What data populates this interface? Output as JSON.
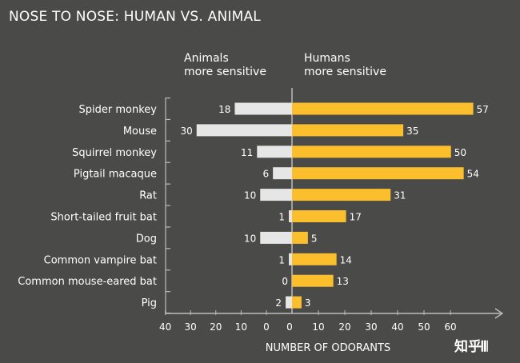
{
  "chart_data": {
    "type": "bar",
    "title": "NOSE TO NOSE: HUMAN VS. ANIMAL",
    "xlabel": "NUMBER OF ODORANTS",
    "left_header": [
      "Animals",
      "more sensitive"
    ],
    "right_header": [
      "Humans",
      "more sensitive"
    ],
    "categories": [
      "Spider monkey",
      "Mouse",
      "Squirrel monkey",
      "Pigtail macaque",
      "Rat",
      "Short-tailed fruit bat",
      "Dog",
      "Common vampire bat",
      "Common mouse-eared bat",
      "Pig"
    ],
    "series": [
      {
        "name": "Animals more sensitive",
        "values": [
          18,
          30,
          11,
          6,
          10,
          1,
          10,
          1,
          0,
          2
        ]
      },
      {
        "name": "Humans more sensitive",
        "values": [
          57,
          35,
          50,
          54,
          31,
          17,
          5,
          14,
          13,
          3
        ]
      }
    ],
    "left_ticks": [
      40,
      30,
      20,
      10,
      0
    ],
    "right_ticks": [
      10,
      20,
      30,
      40,
      50,
      60
    ],
    "zero_label": "0",
    "colors": {
      "animal_bar": "#e6e6e6",
      "human_bar": "#fbbf2e",
      "text": "#ffffff",
      "axis": "#bdbdbd"
    }
  },
  "watermark": "知乎𝄃𝄃"
}
